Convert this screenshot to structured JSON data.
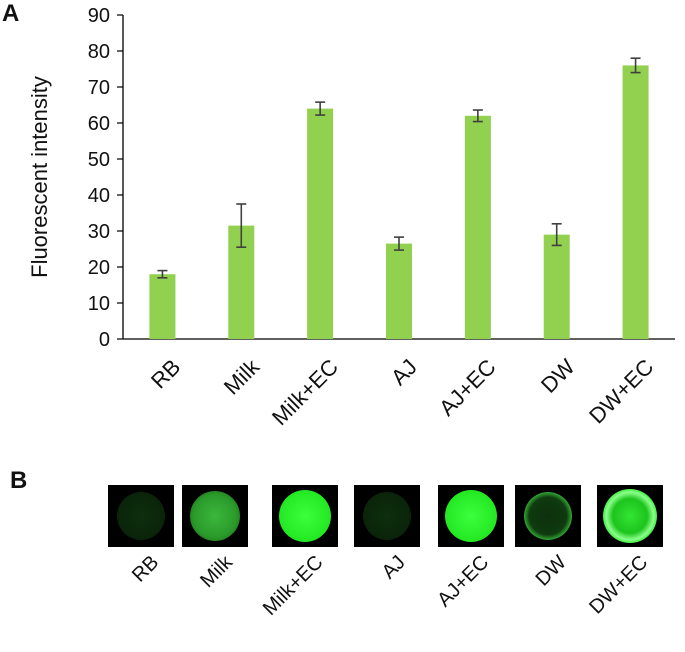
{
  "panels": {
    "a_letter": "A",
    "b_letter": "B"
  },
  "chart_data": {
    "type": "bar",
    "title": "",
    "xlabel": "",
    "ylabel": "Fluorescent intensity",
    "ylim": [
      0,
      90
    ],
    "yticks": [
      0,
      10,
      20,
      30,
      40,
      50,
      60,
      70,
      80,
      90
    ],
    "categories": [
      "RB",
      "Milk",
      "Milk+EC",
      "AJ",
      "AJ+EC",
      "DW",
      "DW+EC"
    ],
    "values": [
      18,
      31.5,
      64,
      26.5,
      62,
      29,
      76
    ],
    "errors": [
      1,
      6,
      1.8,
      1.8,
      1.6,
      3,
      2
    ],
    "bar_color": "#92d050",
    "error_color": "#404040",
    "grid": false,
    "legend": "none"
  },
  "thumbnails": {
    "labels": [
      "RB",
      "Milk",
      "Milk+EC",
      "AJ",
      "AJ+EC",
      "DW",
      "DW+EC"
    ],
    "styles": [
      "dim-dot",
      "soft-dot",
      "bright-dot",
      "dim-dot",
      "bright-dot",
      "ring",
      "bright-ring"
    ]
  }
}
